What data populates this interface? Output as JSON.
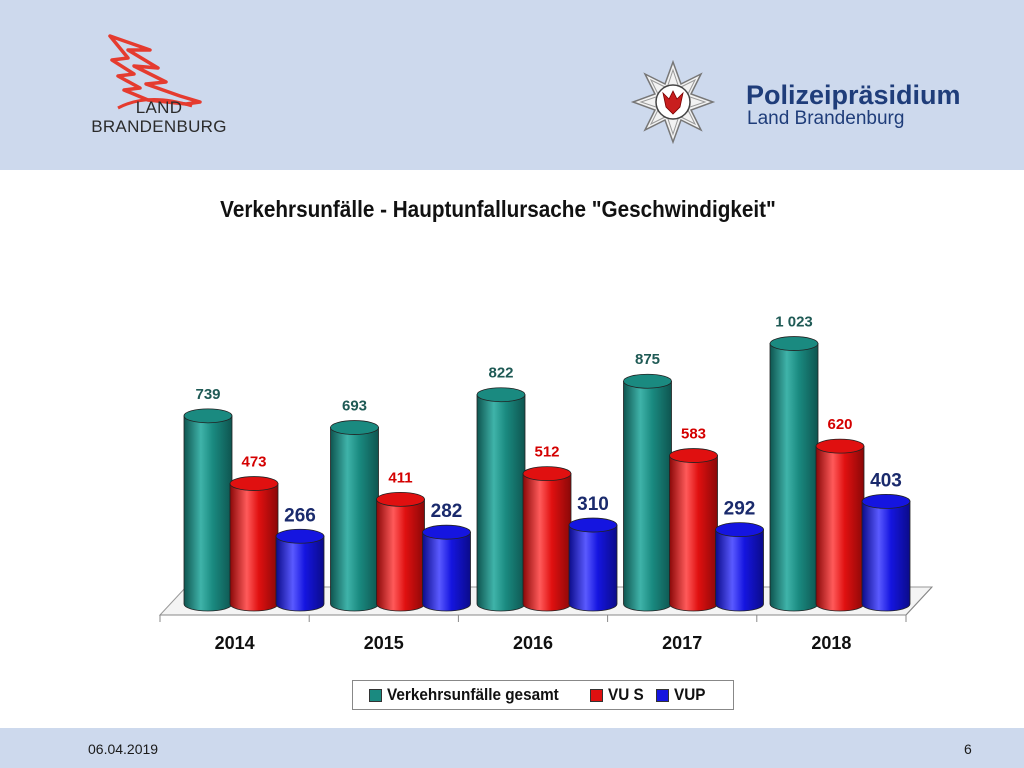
{
  "header": {
    "brand_line1": "LAND",
    "brand_line2": "BRANDENBURG",
    "police_title": "Polizeipräsidium",
    "police_subtitle": "Land Brandenburg"
  },
  "footer": {
    "date": "06.04.2019",
    "page_number": "6"
  },
  "colors": {
    "header_band": "#cdd9ed",
    "series_gesamt": "#1a8a80",
    "series_vus": "#e01010",
    "series_vup": "#1515e0",
    "label_gesamt": "#1f5a55",
    "label_vus": "#d40000",
    "label_vup": "#1a2a6c"
  },
  "chart_data": {
    "type": "bar",
    "title": "Verkehrsunfälle - Hauptunfallursache \"Geschwindigkeit\"",
    "categories": [
      "2014",
      "2015",
      "2016",
      "2017",
      "2018"
    ],
    "series": [
      {
        "name": "Verkehrsunfälle gesamt",
        "values": [
          739,
          693,
          822,
          875,
          1023
        ],
        "labels": [
          "739",
          "693",
          "822",
          "875",
          "1 023"
        ]
      },
      {
        "name": "VU S",
        "values": [
          473,
          411,
          512,
          583,
          620
        ],
        "labels": [
          "473",
          "411",
          "512",
          "583",
          "620"
        ]
      },
      {
        "name": "VUP",
        "values": [
          266,
          282,
          310,
          292,
          403
        ],
        "labels": [
          "266",
          "282",
          "310",
          "292",
          "403"
        ]
      }
    ],
    "legend_position": "bottom",
    "grid": false,
    "style": "3d-cylinder"
  }
}
